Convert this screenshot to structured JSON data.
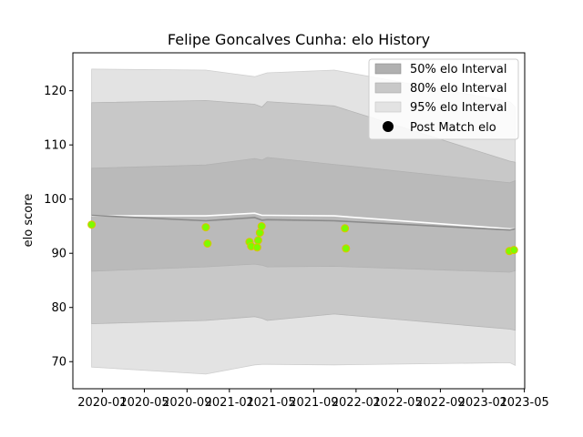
{
  "chart_data": {
    "type": "line",
    "title": "Felipe Goncalves Cunha: elo History",
    "xlabel": "",
    "ylabel": "elo score",
    "x_ticks": [
      "2020-01",
      "2020-05",
      "2020-09",
      "2021-01",
      "2021-05",
      "2021-09",
      "2022-01",
      "2022-05",
      "2022-09",
      "2023-01",
      "2023-05"
    ],
    "y_ticks": [
      70,
      80,
      90,
      100,
      110,
      120
    ],
    "ylim": [
      65,
      127
    ],
    "xlim": [
      "2019-10-08",
      "2023-05-02"
    ],
    "grid": false,
    "legend_position": "top-right",
    "legend": [
      "50% elo Interval",
      "80% elo Interval",
      "95% elo Interval",
      "Post Match elo"
    ],
    "colors": {
      "band50": "#b0b0b0",
      "band80": "#c8c8c8",
      "band95": "#e3e3e3",
      "mean_line": "#8a8a8a",
      "post_line": "#ffffff",
      "marker_fill": "#7cfc00",
      "marker_edge": "#e0c000"
    },
    "bands": {
      "x": [
        "2019-12-01",
        "2020-10-25",
        "2021-03-15",
        "2021-04-05",
        "2021-04-20",
        "2021-10-30",
        "2023-03-20",
        "2023-04-05"
      ],
      "p95_high": [
        124.0,
        123.8,
        122.6,
        123.0,
        123.3,
        123.8,
        118.0,
        117.0
      ],
      "p80_high": [
        117.8,
        118.2,
        117.5,
        117.0,
        118.0,
        117.2,
        107.0,
        106.8
      ],
      "p50_high": [
        105.7,
        106.3,
        107.5,
        107.2,
        107.7,
        106.4,
        103.0,
        103.4
      ],
      "mean": [
        97.0,
        96.0,
        96.6,
        96.1,
        96.2,
        96.0,
        94.3,
        94.5
      ],
      "post": [
        96.9,
        96.9,
        97.4,
        97.0,
        97.0,
        96.9,
        94.5,
        94.5
      ],
      "p50_low": [
        86.7,
        87.5,
        88.0,
        87.8,
        87.5,
        87.6,
        86.5,
        86.8
      ],
      "p80_low": [
        77.0,
        77.6,
        78.3,
        78.0,
        77.6,
        78.8,
        76.0,
        75.8
      ],
      "p95_low": [
        69.0,
        67.7,
        69.4,
        69.5,
        69.5,
        69.4,
        69.8,
        69.3
      ]
    },
    "series": [
      {
        "name": "Post Match elo",
        "points": [
          {
            "x": "2019-12-01",
            "y": 95.3
          },
          {
            "x": "2020-10-25",
            "y": 94.8
          },
          {
            "x": "2020-10-30",
            "y": 91.8
          },
          {
            "x": "2021-02-28",
            "y": 92.1
          },
          {
            "x": "2021-03-05",
            "y": 91.3
          },
          {
            "x": "2021-03-22",
            "y": 91.1
          },
          {
            "x": "2021-03-25",
            "y": 92.4
          },
          {
            "x": "2021-03-30",
            "y": 93.8
          },
          {
            "x": "2021-04-04",
            "y": 95.0
          },
          {
            "x": "2021-11-30",
            "y": 94.6
          },
          {
            "x": "2021-12-03",
            "y": 90.9
          },
          {
            "x": "2023-03-19",
            "y": 90.4
          },
          {
            "x": "2023-04-01",
            "y": 90.6
          }
        ]
      }
    ]
  }
}
